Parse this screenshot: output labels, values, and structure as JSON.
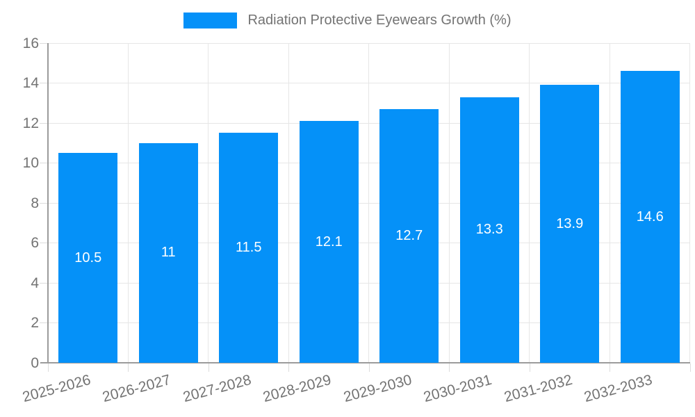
{
  "chart_data": {
    "type": "bar",
    "title": "Radiation Protective Eyewears Growth (%)",
    "categories": [
      "2025-2026",
      "2026-2027",
      "2027-2028",
      "2028-2029",
      "2029-2030",
      "2030-2031",
      "2031-2032",
      "2032-2033"
    ],
    "values": [
      10.5,
      11,
      11.5,
      12.1,
      12.7,
      13.3,
      13.9,
      14.6
    ],
    "xlabel": "",
    "ylabel": "",
    "ylim": [
      0,
      16
    ],
    "ytick_step": 2,
    "y_tick_labels": [
      "0",
      "2",
      "4",
      "6",
      "8",
      "10",
      "12",
      "14",
      "16"
    ],
    "grid": true,
    "legend_position": "top-center",
    "legend_entries": [
      "Radiation Protective Eyewears Growth (%)"
    ],
    "colors": {
      "bar": "#0591f8",
      "bar_label": "#ffffff",
      "axis_line": "#9b9b9b",
      "gridline": "#e6e6e6",
      "tick": "#dcdcdc",
      "text": "#737373",
      "background": "#ffffff"
    }
  }
}
